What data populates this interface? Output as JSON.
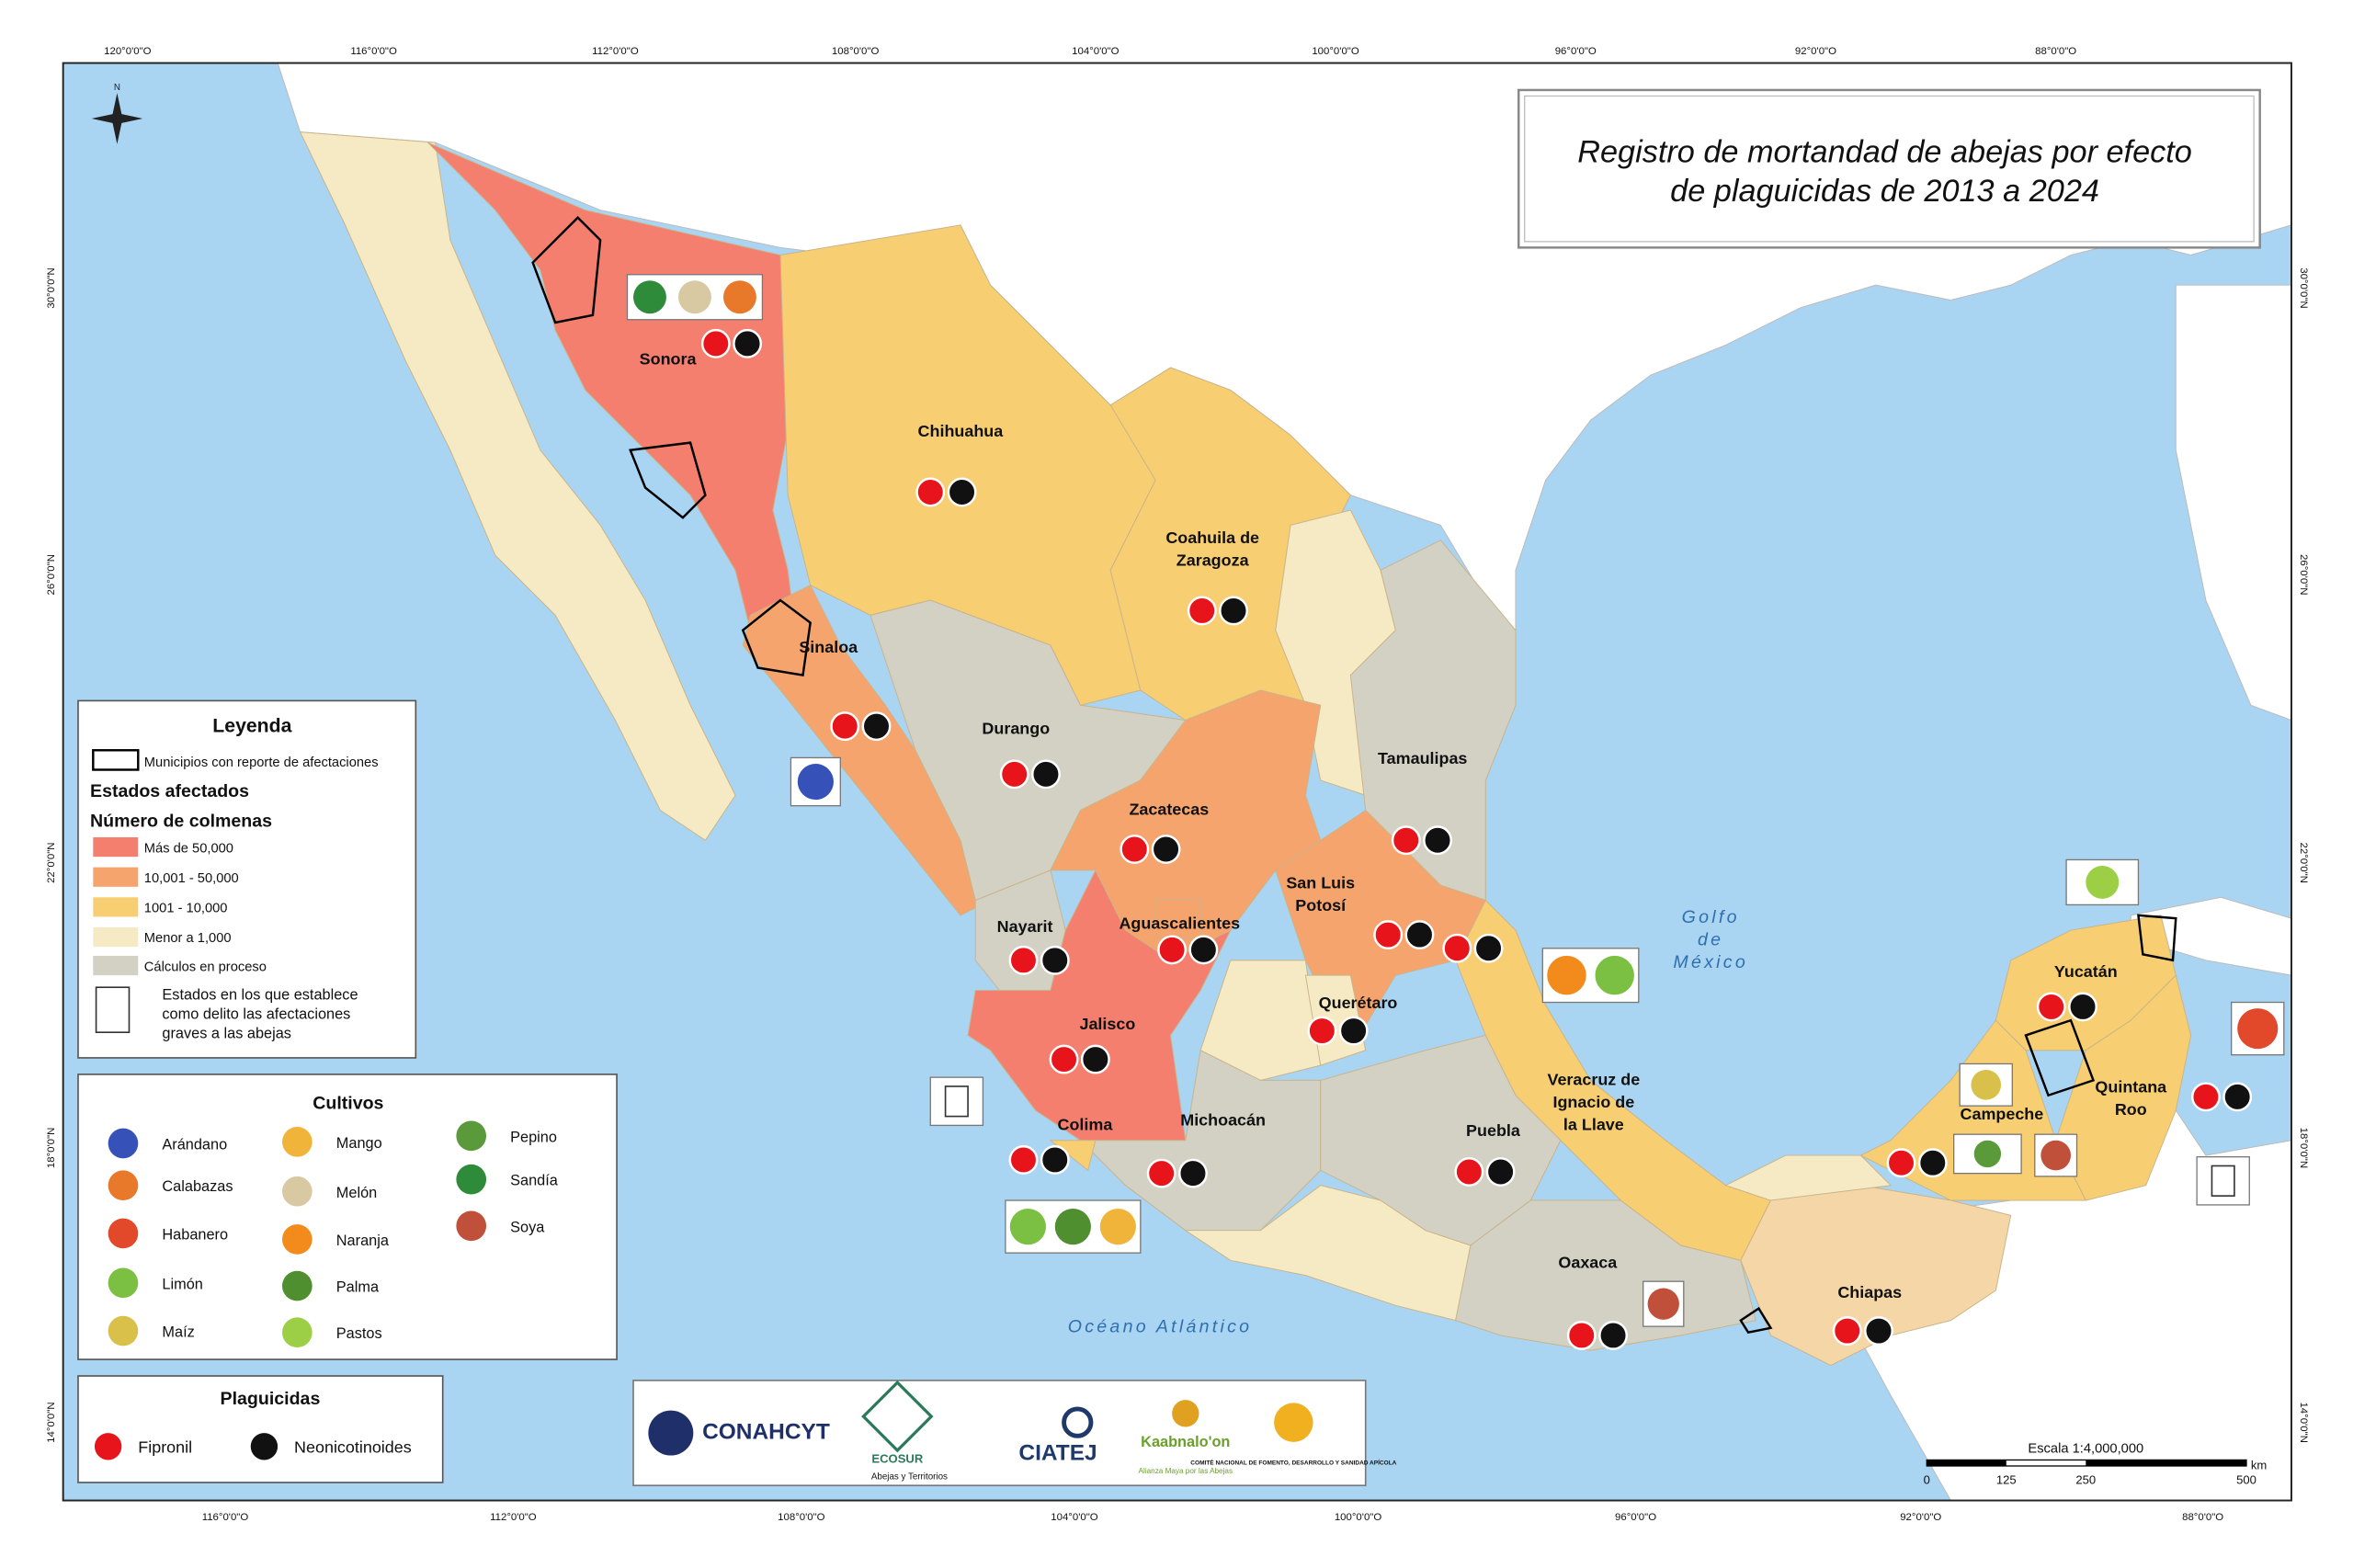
{
  "title": [
    "Registro de mortandad de abejas por efecto",
    "de plaguicidas de 2013 a 2024"
  ],
  "top_longitudes": [
    "120°0'0\"O",
    "116°0'0\"O",
    "112°0'0\"O",
    "108°0'0\"O",
    "104°0'0\"O",
    "100°0'0\"O",
    "96°0'0\"O",
    "92°0'0\"O",
    "88°0'0\"O"
  ],
  "bottom_longitudes": [
    "116°0'0\"O",
    "112°0'0\"O",
    "108°0'0\"O",
    "104°0'0\"O",
    "100°0'0\"O",
    "96°0'0\"O",
    "92°0'0\"O",
    "88°0'0\"O"
  ],
  "latitudes": [
    "30°0'0\"N",
    "26°0'0\"N",
    "22°0'0\"N",
    "18°0'0\"N",
    "14°0'0\"N"
  ],
  "legend": {
    "title": "Leyenda",
    "municipios": "Municipios con reporte de afectaciones",
    "estados_afectados": "Estados afectados",
    "numero_colmenas": "Número de colmenas",
    "classes": [
      "Más de 50,000",
      "10,001 - 50,000",
      "1001 - 10,000",
      "Menor a 1,000",
      "Cálculos en proceso"
    ],
    "delito": [
      "Estados en los que establece",
      "como delito las afectaciones",
      "graves a las abejas"
    ]
  },
  "cultivos": {
    "title": "Cultivos",
    "items": [
      "Arándano",
      "Calabazas",
      "Habanero",
      "Limón",
      "Maíz",
      "Mango",
      "Melón",
      "Naranja",
      "Palma",
      "Pastos",
      "Pepino",
      "Sandía",
      "Soya"
    ]
  },
  "plaguicidas": {
    "title": "Plaguicidas",
    "items": [
      "Fipronil",
      "Neonicotinoides"
    ]
  },
  "states": [
    {
      "label": [
        "Sonora"
      ]
    },
    {
      "label": [
        "Chihuahua"
      ]
    },
    {
      "label": [
        "Coahuila de",
        "Zaragoza"
      ]
    },
    {
      "label": [
        "Sinaloa"
      ]
    },
    {
      "label": [
        "Durango"
      ]
    },
    {
      "label": [
        "Tamaulipas"
      ]
    },
    {
      "label": [
        "Zacatecas"
      ]
    },
    {
      "label": [
        "San Luis",
        "Potosí"
      ]
    },
    {
      "label": [
        "Nayarit"
      ]
    },
    {
      "label": [
        "Aguascalientes"
      ]
    },
    {
      "label": [
        "Querétaro"
      ]
    },
    {
      "label": [
        "Jalisco"
      ]
    },
    {
      "label": [
        "Yucatán"
      ]
    },
    {
      "label": [
        "Veracruz de",
        "Ignacio de",
        "la Llave"
      ]
    },
    {
      "label": [
        "Quintana",
        "Roo"
      ]
    },
    {
      "label": [
        "Colima"
      ]
    },
    {
      "label": [
        "Michoacán"
      ]
    },
    {
      "label": [
        "Puebla"
      ]
    },
    {
      "label": [
        "Campeche"
      ]
    },
    {
      "label": [
        "Oaxaca"
      ]
    },
    {
      "label": [
        "Chiapas"
      ]
    }
  ],
  "seas": {
    "golfo": [
      "Golfo",
      "de",
      "México"
    ],
    "oceano": "Océano Atlántico"
  },
  "scale": {
    "label": "Escala  1:4,000,000",
    "ticks": [
      0,
      125,
      250,
      500
    ],
    "unit": "km"
  },
  "logos": [
    "CONAHCYT",
    "ECOSUR",
    "Abejas y Territorios",
    "CIATEJ",
    "Kaabnalo'on",
    "Alianza Maya por las Abejas",
    "COMITÉ NACIONAL DE FOMENTO, DESARROLLO Y SANIDAD APÍCOLA"
  ]
}
